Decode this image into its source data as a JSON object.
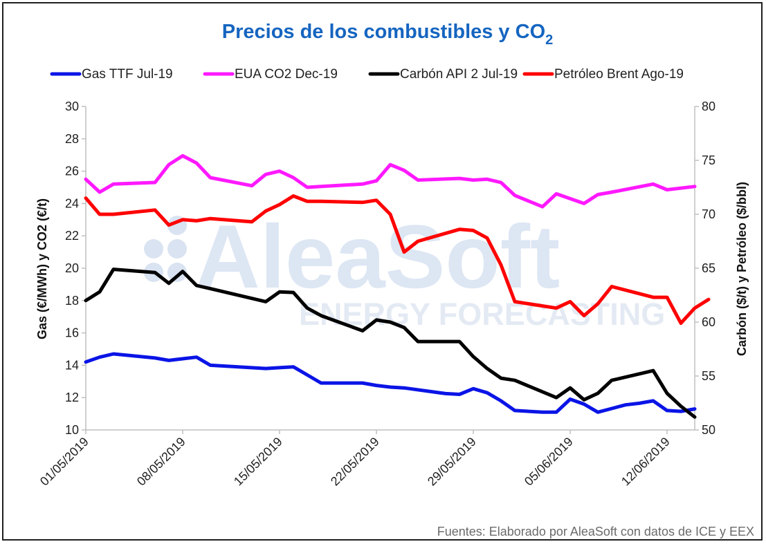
{
  "chart_data": {
    "type": "line",
    "title": "Precios de los combustibles y CO",
    "title_subscript": "2",
    "ylabel_left": "Gas (€/MWh) y CO2 (€/t)",
    "ylabel_right": "Carbón ($/t) y Petróleo ($/bbl)",
    "ylim_left": [
      10,
      30
    ],
    "ylim_right": [
      50,
      80
    ],
    "yticks_left": [
      "10",
      "12",
      "14",
      "16",
      "18",
      "20",
      "22",
      "24",
      "26",
      "28",
      "30"
    ],
    "yticks_right": [
      "50",
      "55",
      "60",
      "65",
      "70",
      "75",
      "80"
    ],
    "xlim_days": [
      0,
      43
    ],
    "xticks": [
      {
        "day": 0,
        "label": "01/05/2019"
      },
      {
        "day": 7,
        "label": "08/05/2019"
      },
      {
        "day": 14,
        "label": "15/05/2019"
      },
      {
        "day": 21,
        "label": "22/05/2019"
      },
      {
        "day": 28,
        "label": "29/05/2019"
      },
      {
        "day": 35,
        "label": "05/06/2019"
      },
      {
        "day": 42,
        "label": "12/06/2019"
      }
    ],
    "legend_position": "top",
    "grid": false,
    "series": [
      {
        "name": "Gas TTF Jul-19",
        "axis": "left",
        "color": "#0a14e6",
        "x": [
          0,
          1,
          2,
          5,
          6,
          7,
          8,
          9,
          13,
          14,
          15,
          16,
          17,
          19,
          20,
          21,
          22,
          23,
          26,
          27,
          28,
          29,
          30,
          31,
          33,
          34,
          35,
          36,
          37,
          39,
          40,
          41,
          42,
          43,
          44
        ],
        "y": [
          14.2,
          14.5,
          14.7,
          14.45,
          14.3,
          14.4,
          14.5,
          14.0,
          13.8,
          13.85,
          13.9,
          13.4,
          12.9,
          12.9,
          12.9,
          12.75,
          12.65,
          12.6,
          12.25,
          12.2,
          12.55,
          12.3,
          11.8,
          11.2,
          11.1,
          11.1,
          11.9,
          11.6,
          11.1,
          11.55,
          11.65,
          11.8,
          11.2,
          11.15,
          11.3
        ]
      },
      {
        "name": "EUA CO2 Dec-19",
        "axis": "left",
        "color": "#ff19ff",
        "x": [
          0,
          1,
          2,
          5,
          6,
          7,
          8,
          9,
          12,
          13,
          14,
          15,
          16,
          17,
          20,
          21,
          22,
          23,
          24,
          27,
          28,
          29,
          30,
          31,
          33,
          34,
          35,
          36,
          37,
          38,
          41,
          42,
          44
        ],
        "y": [
          25.5,
          24.7,
          25.2,
          25.3,
          26.4,
          26.95,
          26.5,
          25.6,
          25.1,
          25.8,
          26.0,
          25.6,
          25.0,
          25.05,
          25.2,
          25.4,
          26.4,
          26.05,
          25.45,
          25.55,
          25.45,
          25.5,
          25.3,
          24.5,
          23.8,
          24.6,
          24.3,
          24.0,
          24.55,
          24.7,
          25.2,
          24.85,
          25.05
        ]
      },
      {
        "name": "Carbón API 2 Jul-19",
        "axis": "right",
        "color": "#000000",
        "x": [
          0,
          1,
          2,
          5,
          6,
          7,
          8,
          9,
          13,
          14,
          15,
          16,
          17,
          20,
          21,
          22,
          23,
          24,
          27,
          28,
          29,
          30,
          31,
          34,
          35,
          36,
          37,
          38,
          41,
          42,
          43,
          44
        ],
        "y": [
          62.0,
          62.8,
          64.9,
          64.6,
          63.6,
          64.7,
          63.4,
          63.1,
          61.9,
          62.8,
          62.75,
          61.3,
          60.6,
          59.2,
          60.2,
          60.0,
          59.5,
          58.2,
          58.2,
          56.8,
          55.7,
          54.8,
          54.6,
          53.0,
          53.9,
          52.8,
          53.4,
          54.6,
          55.5,
          53.4,
          52.2,
          51.2
        ]
      },
      {
        "name": "Petróleo Brent Ago-19",
        "axis": "right",
        "color": "#ff0000",
        "x": [
          0,
          1,
          2,
          5,
          6,
          7,
          8,
          9,
          12,
          13,
          14,
          15,
          16,
          17,
          20,
          21,
          22,
          23,
          24,
          27,
          28,
          29,
          30,
          31,
          34,
          35,
          36,
          37,
          38,
          41,
          42,
          43,
          44,
          45
        ],
        "y": [
          71.5,
          70.0,
          70.0,
          70.4,
          69.0,
          69.5,
          69.4,
          69.6,
          69.3,
          70.3,
          70.9,
          71.7,
          71.2,
          71.2,
          71.1,
          71.3,
          70.0,
          66.5,
          67.5,
          68.6,
          68.5,
          67.8,
          65.3,
          61.9,
          61.3,
          61.9,
          60.6,
          61.7,
          63.3,
          62.3,
          62.3,
          59.9,
          61.3,
          62.1
        ]
      }
    ],
    "watermark": [
      "AleaSoft",
      "ENERGY FORECASTING"
    ],
    "source": "Fuentes: Elaborado por AleaSoft con datos de ICE y EEX"
  }
}
